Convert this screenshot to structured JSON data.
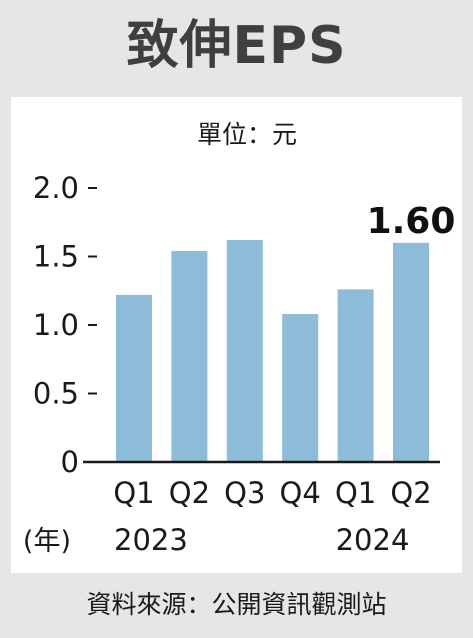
{
  "title": "致伸EPS",
  "source": "資料來源：公開資訊觀測站",
  "chart_data": {
    "type": "bar",
    "unit_label": "單位：元",
    "categories": [
      "Q1",
      "Q2",
      "Q3",
      "Q4",
      "Q1",
      "Q2"
    ],
    "year_axis_label": "(年)",
    "year_labels": [
      {
        "text": "2023",
        "under_index": 0
      },
      {
        "text": "2024",
        "under_index": 4
      }
    ],
    "values": [
      1.22,
      1.54,
      1.62,
      1.08,
      1.26,
      1.6
    ],
    "value_labels": {
      "5": "1.60"
    },
    "yticks": [
      "0",
      "0.5",
      "1.0",
      "1.5",
      "2.0"
    ],
    "ylim": [
      0,
      2.0
    ],
    "bar_color": "#8cbcd8"
  }
}
